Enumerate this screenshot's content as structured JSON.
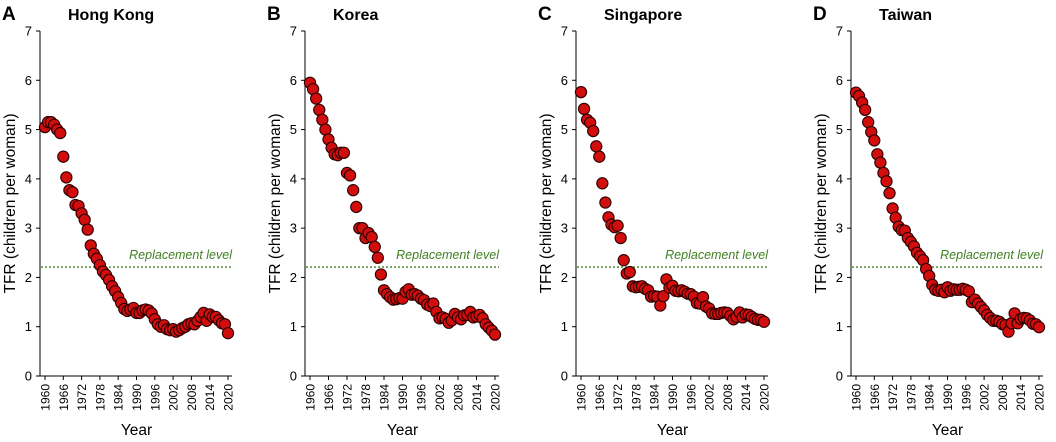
{
  "chart_data": [
    {
      "type": "scatter",
      "panel_letter": "A",
      "title": "Hong Kong",
      "xlabel": "Year",
      "ylabel": "TFR (children per woman)",
      "ylim": [
        0,
        7
      ],
      "yticks": [
        0,
        1,
        2,
        3,
        4,
        5,
        6,
        7
      ],
      "xlim": [
        1960,
        2020
      ],
      "xticks": [
        "1960",
        "1966",
        "1972",
        "1978",
        "1984",
        "1990",
        "1996",
        "2002",
        "2008",
        "2014",
        "2020"
      ],
      "replacement_level": 2.21,
      "replacement_label": "Replacement level",
      "series": [
        {
          "name": "TFR",
          "x": [
            1960,
            1961,
            1962,
            1963,
            1964,
            1965,
            1966,
            1967,
            1968,
            1969,
            1970,
            1971,
            1972,
            1973,
            1974,
            1975,
            1976,
            1977,
            1978,
            1979,
            1980,
            1981,
            1982,
            1983,
            1984,
            1985,
            1986,
            1987,
            1988,
            1989,
            1990,
            1991,
            1992,
            1993,
            1994,
            1995,
            1996,
            1997,
            1998,
            1999,
            2000,
            2001,
            2002,
            2003,
            2004,
            2005,
            2006,
            2007,
            2008,
            2009,
            2010,
            2011,
            2012,
            2013,
            2014,
            2015,
            2016,
            2017,
            2018,
            2019,
            2020
          ],
          "values": [
            5.05,
            5.15,
            5.15,
            5.1,
            5.0,
            4.93,
            4.45,
            4.03,
            3.77,
            3.73,
            3.47,
            3.45,
            3.3,
            3.17,
            2.97,
            2.65,
            2.48,
            2.38,
            2.25,
            2.12,
            2.05,
            1.95,
            1.82,
            1.72,
            1.6,
            1.48,
            1.36,
            1.32,
            1.35,
            1.38,
            1.28,
            1.28,
            1.33,
            1.35,
            1.33,
            1.27,
            1.15,
            1.05,
            1.0,
            1.03,
            0.95,
            0.93,
            0.95,
            0.9,
            0.93,
            0.97,
            1.0,
            1.05,
            1.07,
            1.05,
            1.12,
            1.2,
            1.28,
            1.12,
            1.25,
            1.2,
            1.2,
            1.13,
            1.07,
            1.05,
            0.87
          ]
        }
      ]
    },
    {
      "type": "scatter",
      "panel_letter": "B",
      "title": "Korea",
      "xlabel": "Year",
      "ylabel": "TFR (children per woman)",
      "ylim": [
        0,
        7
      ],
      "yticks": [
        0,
        1,
        2,
        3,
        4,
        5,
        6,
        7
      ],
      "xlim": [
        1960,
        2020
      ],
      "xticks": [
        "1960",
        "1966",
        "1972",
        "1978",
        "1984",
        "1990",
        "1996",
        "2002",
        "2008",
        "2014",
        "2020"
      ],
      "replacement_level": 2.21,
      "replacement_label": "Replacement level",
      "series": [
        {
          "name": "TFR",
          "x": [
            1960,
            1961,
            1962,
            1963,
            1964,
            1965,
            1966,
            1967,
            1968,
            1969,
            1970,
            1971,
            1972,
            1973,
            1974,
            1975,
            1976,
            1977,
            1978,
            1979,
            1980,
            1981,
            1982,
            1983,
            1984,
            1985,
            1986,
            1987,
            1988,
            1989,
            1990,
            1991,
            1992,
            1993,
            1994,
            1995,
            1996,
            1997,
            1998,
            1999,
            2000,
            2001,
            2002,
            2003,
            2004,
            2005,
            2006,
            2007,
            2008,
            2009,
            2010,
            2011,
            2012,
            2013,
            2014,
            2015,
            2016,
            2017,
            2018,
            2019,
            2020
          ],
          "values": [
            5.95,
            5.82,
            5.63,
            5.4,
            5.2,
            5.0,
            4.8,
            4.63,
            4.5,
            4.48,
            4.53,
            4.53,
            4.12,
            4.07,
            3.77,
            3.43,
            3.0,
            3.0,
            2.8,
            2.9,
            2.82,
            2.62,
            2.4,
            2.06,
            1.74,
            1.66,
            1.6,
            1.55,
            1.56,
            1.58,
            1.57,
            1.71,
            1.76,
            1.65,
            1.66,
            1.63,
            1.57,
            1.54,
            1.45,
            1.42,
            1.47,
            1.3,
            1.17,
            1.19,
            1.16,
            1.08,
            1.13,
            1.26,
            1.19,
            1.15,
            1.23,
            1.24,
            1.3,
            1.19,
            1.21,
            1.24,
            1.17,
            1.05,
            0.98,
            0.92,
            0.84
          ]
        }
      ]
    },
    {
      "type": "scatter",
      "panel_letter": "C",
      "title": "Singapore",
      "xlabel": "Year",
      "ylabel": "TFR (children per woman)",
      "ylim": [
        0,
        7
      ],
      "yticks": [
        0,
        1,
        2,
        3,
        4,
        5,
        6,
        7
      ],
      "xlim": [
        1960,
        2020
      ],
      "xticks": [
        "1960",
        "1966",
        "1972",
        "1978",
        "1984",
        "1990",
        "1996",
        "2002",
        "2008",
        "2014",
        "2020"
      ],
      "replacement_level": 2.21,
      "replacement_label": "Replacement level",
      "series": [
        {
          "name": "TFR",
          "x": [
            1960,
            1961,
            1962,
            1963,
            1964,
            1965,
            1966,
            1967,
            1968,
            1969,
            1970,
            1971,
            1972,
            1973,
            1974,
            1975,
            1976,
            1977,
            1978,
            1979,
            1980,
            1981,
            1982,
            1983,
            1984,
            1985,
            1986,
            1987,
            1988,
            1989,
            1990,
            1991,
            1992,
            1993,
            1994,
            1995,
            1996,
            1997,
            1998,
            1999,
            2000,
            2001,
            2002,
            2003,
            2004,
            2005,
            2006,
            2007,
            2008,
            2009,
            2010,
            2011,
            2012,
            2013,
            2014,
            2015,
            2016,
            2017,
            2018,
            2019,
            2020
          ],
          "values": [
            5.76,
            5.42,
            5.2,
            5.14,
            4.97,
            4.66,
            4.45,
            3.91,
            3.52,
            3.22,
            3.07,
            3.02,
            3.05,
            2.8,
            2.35,
            2.08,
            2.11,
            1.82,
            1.8,
            1.81,
            1.82,
            1.77,
            1.74,
            1.61,
            1.62,
            1.61,
            1.43,
            1.62,
            1.96,
            1.79,
            1.83,
            1.73,
            1.72,
            1.74,
            1.71,
            1.67,
            1.66,
            1.61,
            1.48,
            1.47,
            1.6,
            1.41,
            1.37,
            1.27,
            1.26,
            1.26,
            1.28,
            1.29,
            1.28,
            1.22,
            1.15,
            1.2,
            1.29,
            1.19,
            1.25,
            1.24,
            1.2,
            1.16,
            1.14,
            1.14,
            1.1
          ]
        }
      ]
    },
    {
      "type": "scatter",
      "panel_letter": "D",
      "title": "Taiwan",
      "xlabel": "Year",
      "ylabel": "TFR (children per woman)",
      "ylim": [
        0,
        7
      ],
      "yticks": [
        0,
        1,
        2,
        3,
        4,
        5,
        6,
        7
      ],
      "xlim": [
        1960,
        2020
      ],
      "xticks": [
        "1960",
        "1966",
        "1972",
        "1978",
        "1984",
        "1990",
        "1996",
        "2002",
        "2008",
        "2014",
        "2020"
      ],
      "replacement_level": 2.21,
      "replacement_label": "Replacement level",
      "series": [
        {
          "name": "TFR",
          "x": [
            1960,
            1961,
            1962,
            1963,
            1964,
            1965,
            1966,
            1967,
            1968,
            1969,
            1970,
            1971,
            1972,
            1973,
            1974,
            1975,
            1976,
            1977,
            1978,
            1979,
            1980,
            1981,
            1982,
            1983,
            1984,
            1985,
            1986,
            1987,
            1988,
            1989,
            1990,
            1991,
            1992,
            1993,
            1994,
            1995,
            1996,
            1997,
            1998,
            1999,
            2000,
            2001,
            2002,
            2003,
            2004,
            2005,
            2006,
            2007,
            2008,
            2009,
            2010,
            2011,
            2012,
            2013,
            2014,
            2015,
            2016,
            2017,
            2018,
            2019,
            2020
          ],
          "values": [
            5.75,
            5.68,
            5.55,
            5.4,
            5.15,
            4.95,
            4.78,
            4.5,
            4.33,
            4.12,
            3.95,
            3.71,
            3.4,
            3.21,
            3.03,
            2.96,
            2.95,
            2.8,
            2.72,
            2.63,
            2.5,
            2.43,
            2.35,
            2.17,
            2.03,
            1.85,
            1.75,
            1.73,
            1.75,
            1.7,
            1.8,
            1.73,
            1.76,
            1.75,
            1.75,
            1.77,
            1.75,
            1.72,
            1.5,
            1.55,
            1.47,
            1.4,
            1.33,
            1.24,
            1.18,
            1.12,
            1.12,
            1.1,
            1.05,
            1.03,
            0.9,
            1.07,
            1.27,
            1.07,
            1.16,
            1.18,
            1.17,
            1.13,
            1.06,
            1.05,
            0.99
          ]
        }
      ]
    }
  ]
}
